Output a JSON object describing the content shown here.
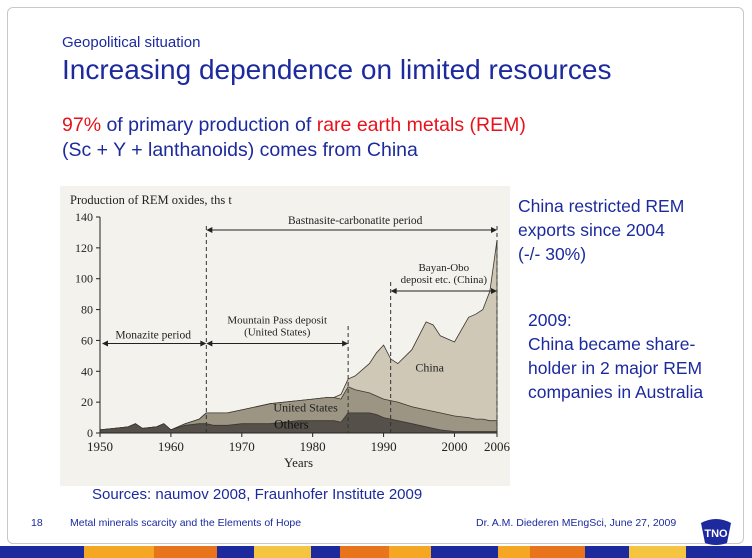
{
  "slide": {
    "kicker": "Geopolitical situation",
    "title": "Increasing dependence on limited resources",
    "lead_pct": "97%",
    "lead_mid": " of primary production of ",
    "lead_rem": "rare earth metals (REM)",
    "lead_line2": "(Sc + Y + lanthanoids) comes from China",
    "side1": [
      "China restricted REM",
      "exports since 2004",
      "(-/- 30%)"
    ],
    "side2": [
      "2009:",
      "China became share-",
      "holder in 2 major REM",
      "companies in Australia"
    ],
    "sources": "Sources: naumov 2008, Fraunhofer Institute 2009",
    "page_number": "18",
    "footer_left": "Metal minerals scarcity and the Elements of Hope",
    "footer_right": "Dr. A.M. Diederen MEngSci, June 27, 2009",
    "logo_text": "TNO"
  },
  "colors": {
    "blue": "#1c2a9e",
    "red": "#e8121c",
    "bar": [
      "#1c2a9e",
      "#f5a623",
      "#e8741c",
      "#1c2a9e",
      "#f5c542",
      "#1c2a9e",
      "#e8741c",
      "#f5a623"
    ]
  },
  "chart_data": {
    "type": "area",
    "title": "Production of REM oxides, ths t",
    "xlabel": "Years",
    "ylabel": "",
    "xlim": [
      1950,
      2006
    ],
    "ylim": [
      0,
      140
    ],
    "xticks": [
      1950,
      1960,
      1970,
      1980,
      1990,
      2000,
      2006
    ],
    "yticks": [
      0,
      20,
      40,
      60,
      80,
      100,
      120,
      140
    ],
    "x": [
      1950,
      1952,
      1954,
      1955,
      1956,
      1958,
      1959,
      1960,
      1962,
      1964,
      1965,
      1966,
      1968,
      1970,
      1972,
      1974,
      1976,
      1978,
      1980,
      1982,
      1983,
      1984,
      1985,
      1986,
      1988,
      1989,
      1990,
      1991,
      1992,
      1994,
      1996,
      1997,
      1998,
      2000,
      2002,
      2003,
      2004,
      2005,
      2006
    ],
    "series": [
      {
        "name": "Others",
        "values": [
          2,
          3,
          4,
          6,
          3,
          4,
          6,
          2,
          5,
          6,
          6,
          5,
          5,
          6,
          6,
          6,
          7,
          8,
          8,
          8,
          8,
          7,
          13,
          13,
          13,
          12,
          10,
          9,
          8,
          6,
          4,
          3,
          2,
          1,
          1,
          1,
          1,
          1,
          1
        ]
      },
      {
        "name": "United States",
        "values": [
          2,
          3,
          4,
          6,
          3,
          4,
          6,
          2,
          6,
          9,
          13,
          13,
          13,
          15,
          17,
          19,
          20,
          21,
          22,
          23,
          23,
          22,
          30,
          28,
          26,
          24,
          22,
          21,
          20,
          17,
          15,
          14,
          13,
          11,
          10,
          9,
          9,
          8,
          8
        ]
      },
      {
        "name": "China",
        "values": [
          2,
          3,
          4,
          6,
          3,
          4,
          6,
          2,
          6,
          9,
          13,
          13,
          13,
          15,
          17,
          19,
          20,
          21,
          22,
          23,
          23,
          25,
          35,
          37,
          45,
          52,
          57,
          48,
          45,
          54,
          72,
          70,
          63,
          59,
          75,
          77,
          80,
          92,
          125
        ]
      }
    ],
    "periods": [
      {
        "label": "Monazite period",
        "from": 1950,
        "to": 1965
      },
      {
        "label": "Mountain Pass deposit (United States)",
        "from": 1965,
        "to": 1985
      },
      {
        "label": "Bastnasite-carbonatite period",
        "from": 1965,
        "to": 2006
      },
      {
        "label": "Bayan-Obo deposit etc. (China)",
        "from": 1991,
        "to": 2006
      }
    ],
    "period_labels": {
      "monazite": "Monazite period",
      "mp_line1": "Mountain Pass deposit",
      "mp_line2": "(United States)",
      "bastnasite": "Bastnasite-carbonatite period",
      "bo_line1": "Bayan-Obo",
      "bo_line2": "deposit etc. (China)"
    },
    "area_labels": {
      "china": "China",
      "us": "United States",
      "others": "Others"
    }
  }
}
